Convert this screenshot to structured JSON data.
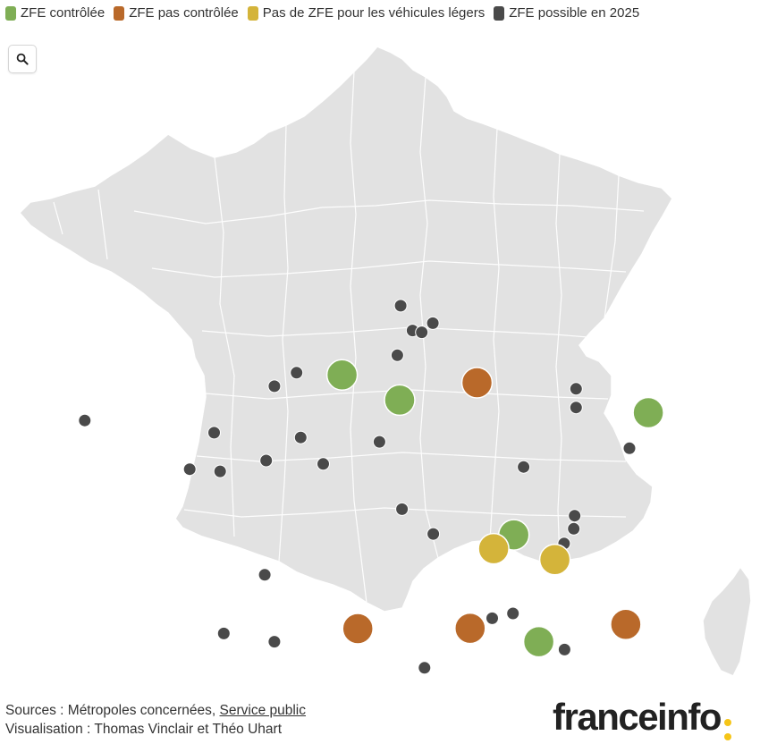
{
  "legend": {
    "items": [
      {
        "label": "ZFE contrôlée",
        "color": "#7fae55"
      },
      {
        "label": "ZFE pas contrôlée",
        "color": "#b9692a"
      },
      {
        "label": "Pas de ZFE pour les véhicules légers",
        "color": "#d4b43a"
      },
      {
        "label": "ZFE possible en 2025",
        "color": "#4a4a4a"
      }
    ]
  },
  "search": {
    "icon": "search-icon"
  },
  "map": {
    "land_color": "#e2e2e2",
    "border_color": "#ffffff",
    "markers": [
      {
        "category": 0,
        "lon": 1.1,
        "lat": 49.44
      },
      {
        "category": 0,
        "lon": 2.35,
        "lat": 48.86
      },
      {
        "category": 0,
        "lon": 7.75,
        "lat": 48.57
      },
      {
        "category": 0,
        "lon": 4.83,
        "lat": 45.76
      },
      {
        "category": 0,
        "lon": 5.37,
        "lat": 43.3
      },
      {
        "category": 1,
        "lon": 4.03,
        "lat": 49.26
      },
      {
        "category": 1,
        "lon": 1.44,
        "lat": 43.6
      },
      {
        "category": 1,
        "lon": 3.88,
        "lat": 43.61
      },
      {
        "category": 1,
        "lon": 7.26,
        "lat": 43.7
      },
      {
        "category": 2,
        "lon": 4.39,
        "lat": 45.44
      },
      {
        "category": 2,
        "lon": 5.72,
        "lat": 45.19
      },
      {
        "category": 3,
        "lon": 2.37,
        "lat": 51.03
      },
      {
        "category": 3,
        "lon": 2.63,
        "lat": 50.46
      },
      {
        "category": 3,
        "lon": 2.83,
        "lat": 50.42
      },
      {
        "category": 3,
        "lon": 3.07,
        "lat": 50.63
      },
      {
        "category": 3,
        "lon": 2.3,
        "lat": 49.89
      },
      {
        "category": 3,
        "lon": 0.11,
        "lat": 49.49
      },
      {
        "category": 3,
        "lon": -0.37,
        "lat": 49.18
      },
      {
        "category": 3,
        "lon": 6.18,
        "lat": 49.12
      },
      {
        "category": 3,
        "lon": 6.18,
        "lat": 48.69
      },
      {
        "category": 3,
        "lon": 7.34,
        "lat": 47.75
      },
      {
        "category": 3,
        "lon": -4.49,
        "lat": 48.39
      },
      {
        "category": 3,
        "lon": -1.68,
        "lat": 48.11
      },
      {
        "category": 3,
        "lon": 0.2,
        "lat": 48.0
      },
      {
        "category": 3,
        "lon": 1.91,
        "lat": 47.9
      },
      {
        "category": 3,
        "lon": -0.55,
        "lat": 47.47
      },
      {
        "category": 3,
        "lon": 0.69,
        "lat": 47.39
      },
      {
        "category": 3,
        "lon": -2.21,
        "lat": 47.27
      },
      {
        "category": 3,
        "lon": -1.55,
        "lat": 47.22
      },
      {
        "category": 3,
        "lon": 5.04,
        "lat": 47.32
      },
      {
        "category": 3,
        "lon": 2.4,
        "lat": 46.35
      },
      {
        "category": 3,
        "lon": 3.08,
        "lat": 45.78
      },
      {
        "category": 3,
        "lon": 6.13,
        "lat": 45.9
      },
      {
        "category": 3,
        "lon": 5.92,
        "lat": 45.56
      },
      {
        "category": 3,
        "lon": 6.15,
        "lat": 46.2
      },
      {
        "category": 3,
        "lon": -0.58,
        "lat": 44.84
      },
      {
        "category": 3,
        "lon": -1.47,
        "lat": 43.49
      },
      {
        "category": 3,
        "lon": -0.37,
        "lat": 43.3
      },
      {
        "category": 3,
        "lon": 2.89,
        "lat": 42.7
      },
      {
        "category": 3,
        "lon": 4.36,
        "lat": 43.84
      },
      {
        "category": 3,
        "lon": 4.81,
        "lat": 43.95
      },
      {
        "category": 3,
        "lon": 5.93,
        "lat": 43.12
      }
    ]
  },
  "footer": {
    "sources_prefix": "Sources : Métropoles concernées, ",
    "sources_link": "Service public",
    "credit": "Visualisation : Thomas Vinclair et Théo Uhart"
  },
  "logo": {
    "text": "franceinfo",
    "dot_color": "#f5c518"
  }
}
